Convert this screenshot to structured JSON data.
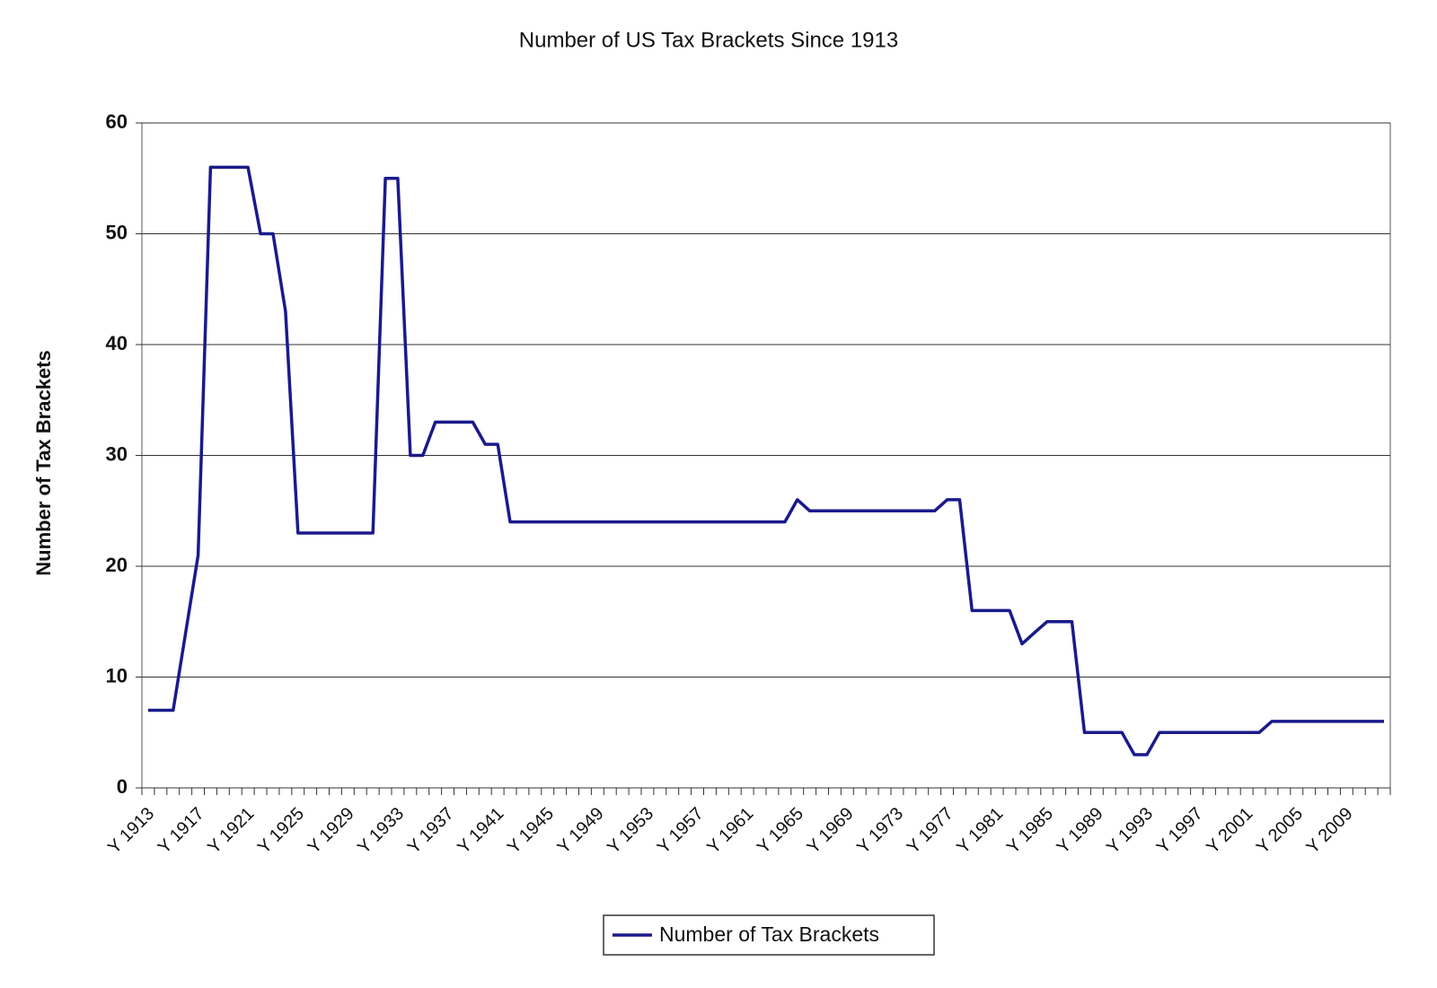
{
  "chart_data": {
    "type": "line",
    "title": "Number of US Tax Brackets Since 1913",
    "y_label": "Number of Tax Brackets",
    "categories": [
      "Y 1913",
      null,
      null,
      null,
      "Y 1917",
      null,
      null,
      null,
      "Y 1921",
      null,
      null,
      null,
      "Y 1925",
      null,
      null,
      null,
      "Y 1929",
      null,
      null,
      null,
      "Y 1933",
      null,
      null,
      null,
      "Y 1937",
      null,
      null,
      null,
      "Y 1941",
      null,
      null,
      null,
      "Y 1945",
      null,
      null,
      null,
      "Y 1949",
      null,
      null,
      null,
      "Y 1953",
      null,
      null,
      null,
      "Y 1957",
      null,
      null,
      null,
      "Y 1961",
      null,
      null,
      null,
      "Y 1965",
      null,
      null,
      null,
      "Y 1969",
      null,
      null,
      null,
      "Y 1973",
      null,
      null,
      null,
      "Y 1977",
      null,
      null,
      null,
      "Y 1981",
      null,
      null,
      null,
      "Y 1985",
      null,
      null,
      null,
      "Y 1989",
      null,
      null,
      null,
      "Y 1993",
      null,
      null,
      null,
      "Y 1997",
      null,
      null,
      null,
      "Y 2001",
      null,
      null,
      null,
      "Y 2005",
      null,
      null,
      null,
      "Y 2009",
      null,
      null,
      null
    ],
    "series": [
      {
        "name": "Number of Tax Brackets",
        "color": "#1a1a8c",
        "values": [
          7,
          7,
          7,
          14,
          21,
          56,
          56,
          56,
          56,
          50,
          50,
          43,
          23,
          23,
          23,
          23,
          23,
          23,
          23,
          55,
          55,
          30,
          30,
          33,
          33,
          33,
          33,
          31,
          31,
          24,
          24,
          24,
          24,
          24,
          24,
          24,
          24,
          24,
          24,
          24,
          24,
          24,
          24,
          24,
          24,
          24,
          24,
          24,
          24,
          24,
          24,
          24,
          26,
          25,
          25,
          25,
          25,
          25,
          25,
          25,
          25,
          25,
          25,
          25,
          26,
          26,
          16,
          16,
          16,
          16,
          13,
          14,
          15,
          15,
          15,
          5,
          5,
          5,
          5,
          3,
          3,
          5,
          5,
          5,
          5,
          5,
          5,
          5,
          5,
          5,
          6,
          6,
          6,
          6,
          6,
          6,
          6,
          6,
          6,
          6
        ]
      }
    ],
    "ylim": [
      0,
      60
    ],
    "yticks": [
      0,
      10,
      20,
      30,
      40,
      50,
      60
    ],
    "grid": true,
    "legend": "bottom"
  }
}
